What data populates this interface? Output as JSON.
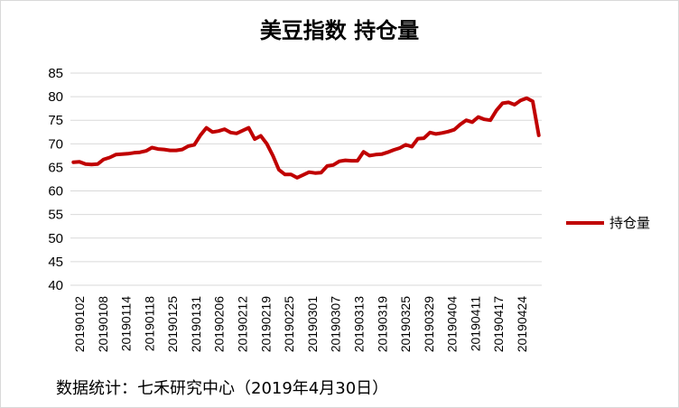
{
  "chart_data": {
    "type": "line",
    "title": "美豆指数 持仓量",
    "ylim": [
      40,
      85
    ],
    "yticks": [
      40,
      45,
      50,
      55,
      60,
      65,
      70,
      75,
      80,
      85
    ],
    "grid": "horizontal",
    "legend_position": "right",
    "x_tick_labels": [
      "20190102",
      "20190108",
      "20190114",
      "20190118",
      "20190125",
      "20190131",
      "20190206",
      "20190212",
      "20190219",
      "20190225",
      "20190301",
      "20190307",
      "20190313",
      "20190319",
      "20190325",
      "20190329",
      "20190404",
      "20190411",
      "20190417",
      "20190424"
    ],
    "series": [
      {
        "name": "持仓量",
        "color": "#c00000",
        "values": [
          66.1,
          66.2,
          65.7,
          65.6,
          65.7,
          66.7,
          67.1,
          67.7,
          67.8,
          67.9,
          68.1,
          68.2,
          68.5,
          69.2,
          68.9,
          68.8,
          68.6,
          68.6,
          68.8,
          69.5,
          69.8,
          71.8,
          73.4,
          72.5,
          72.7,
          73.1,
          72.4,
          72.2,
          72.8,
          73.4,
          71.0,
          71.7,
          70.0,
          67.5,
          64.5,
          63.5,
          63.5,
          62.8,
          63.4,
          64.0,
          63.8,
          63.9,
          65.3,
          65.5,
          66.3,
          66.5,
          66.4,
          66.4,
          68.3,
          67.5,
          67.7,
          67.8,
          68.2,
          68.7,
          69.1,
          69.8,
          69.4,
          71.1,
          71.2,
          72.4,
          72.1,
          72.3,
          72.6,
          73.0,
          74.1,
          75.0,
          74.6,
          75.7,
          75.2,
          75.0,
          77.1,
          78.6,
          78.8,
          78.3,
          79.2,
          79.7,
          79.0,
          71.8
        ]
      }
    ]
  },
  "source_text": "数据统计：七禾研究中心（2019年4月30日）"
}
